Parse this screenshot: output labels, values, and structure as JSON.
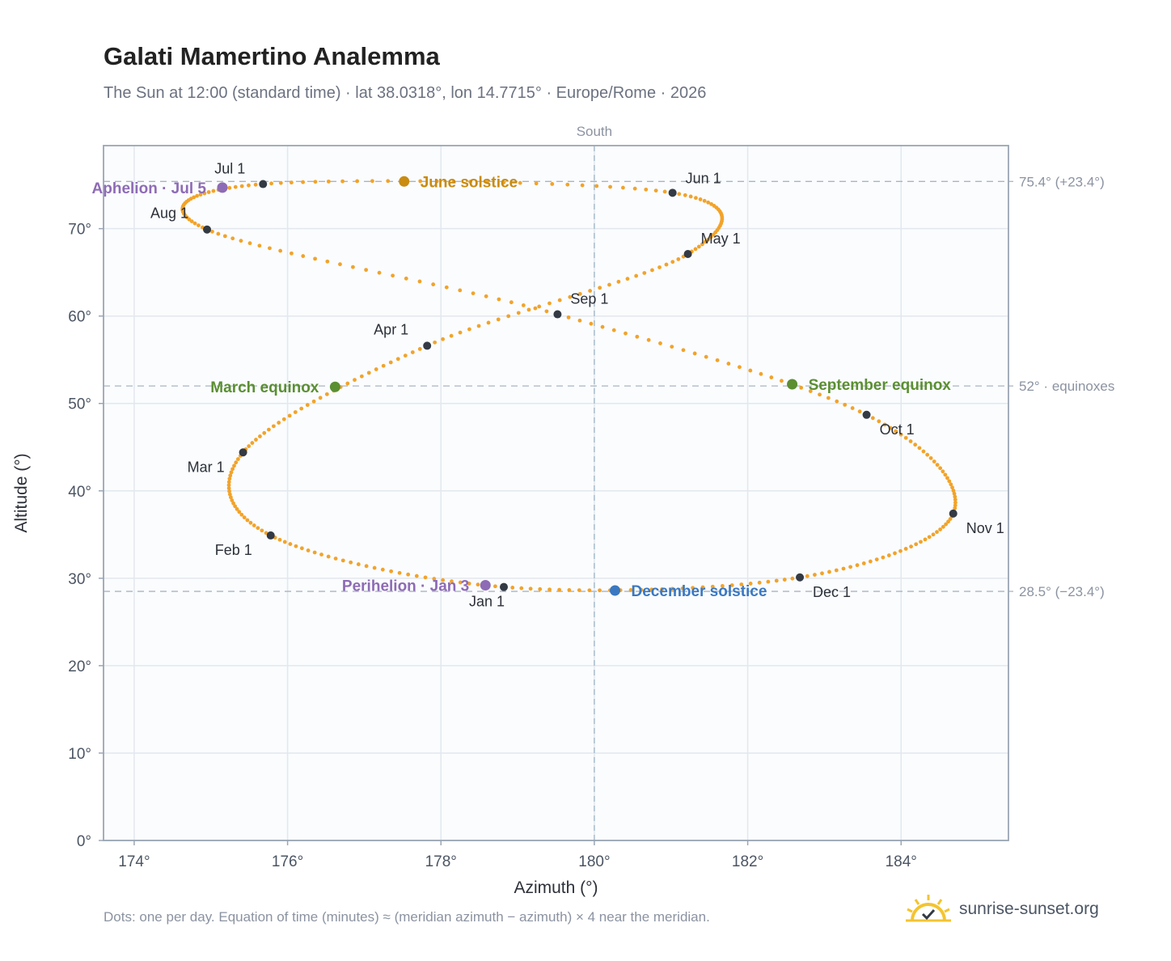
{
  "title": "Galati Mamertino Analemma",
  "subtitle": "The Sun at 12:00 (standard time) · lat 38.0318°, lon 14.7715° · Europe/Rome · 2026",
  "footnote": "Dots: one per day. Equation of time (minutes) ≈ (meridian azimuth − azimuth) × 4 near the meridian.",
  "brand": {
    "name": "sunrise-sunset.org",
    "logo_icon": "sun-check-icon"
  },
  "chart_data": {
    "type": "scatter",
    "xlabel": "Azimuth (°)",
    "ylabel": "Altitude (°)",
    "xlim": [
      173.6,
      185.4
    ],
    "ylim": [
      0,
      79.5
    ],
    "xticks": [
      174,
      176,
      178,
      180,
      182,
      184
    ],
    "xtick_labels": [
      "174°",
      "176°",
      "178°",
      "180°",
      "182°",
      "184°"
    ],
    "yticks": [
      0,
      10,
      20,
      30,
      40,
      50,
      60,
      70
    ],
    "ytick_labels": [
      "0°",
      "10°",
      "20°",
      "30°",
      "40°",
      "50°",
      "60°",
      "70°"
    ],
    "grid": true,
    "meridian": {
      "azimuth": 180,
      "label": "South"
    },
    "reference_lines": [
      {
        "altitude": 75.4,
        "label": "75.4° (+23.4°)"
      },
      {
        "altitude": 52,
        "label": "52° · equinoxes"
      },
      {
        "altitude": 28.5,
        "label": "28.5° (−23.4°)"
      }
    ],
    "month_points": [
      {
        "label": "Jan 1",
        "az": 178.82,
        "alt": 29.0
      },
      {
        "label": "Feb 1",
        "az": 175.78,
        "alt": 34.9
      },
      {
        "label": "Mar 1",
        "az": 175.42,
        "alt": 44.4
      },
      {
        "label": "Apr 1",
        "az": 177.82,
        "alt": 56.6
      },
      {
        "label": "May 1",
        "az": 181.22,
        "alt": 67.1
      },
      {
        "label": "Jun 1",
        "az": 181.02,
        "alt": 74.1
      },
      {
        "label": "Jul 1",
        "az": 175.68,
        "alt": 75.1
      },
      {
        "label": "Aug 1",
        "az": 174.95,
        "alt": 69.9
      },
      {
        "label": "Sep 1",
        "az": 179.52,
        "alt": 60.2
      },
      {
        "label": "Oct 1",
        "az": 183.55,
        "alt": 48.7
      },
      {
        "label": "Nov 1",
        "az": 184.68,
        "alt": 37.4
      },
      {
        "label": "Dec 1",
        "az": 182.68,
        "alt": 30.1
      }
    ],
    "events": [
      {
        "label": "June solstice",
        "az": 177.52,
        "alt": 75.4,
        "color": "#c98b10"
      },
      {
        "label": "March equinox",
        "az": 176.62,
        "alt": 51.9,
        "color": "#5b8f32"
      },
      {
        "label": "September equinox",
        "az": 182.58,
        "alt": 52.2,
        "color": "#5b8f32"
      },
      {
        "label": "December solstice",
        "az": 180.27,
        "alt": 28.6,
        "color": "#3a78c2"
      },
      {
        "label": "Aphelion · Jul 5",
        "az": 175.15,
        "alt": 74.7,
        "color": "#8e6bb5"
      },
      {
        "label": "Perihelion · Jan 3",
        "az": 178.58,
        "alt": 29.2,
        "color": "#8e6bb5"
      }
    ],
    "colors": {
      "daily_dots": "#f2a32a",
      "month_dots": "#333a44",
      "plot_background": "#fafcfe",
      "grid": "#e3e8ee",
      "frame": "#9aa5b5",
      "reference": "#aab4c0"
    }
  }
}
